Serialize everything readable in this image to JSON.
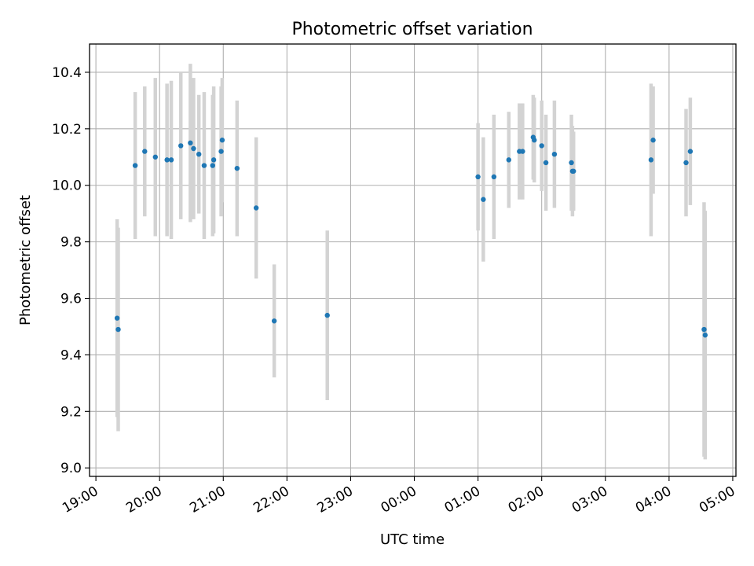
{
  "chart_data": {
    "type": "scatter",
    "title": "Photometric offset variation",
    "xlabel": "UTC time",
    "ylabel": "Photometric offset",
    "x_is_time": true,
    "x_start": "19:00",
    "x_range_hours": [
      -0.1,
      10.05
    ],
    "ylim": [
      8.97,
      10.5
    ],
    "grid": true,
    "x_tick_labels": [
      "19:00",
      "20:00",
      "21:00",
      "22:00",
      "23:00",
      "00:00",
      "01:00",
      "02:00",
      "03:00",
      "04:00",
      "05:00"
    ],
    "y_ticks": [
      9.0,
      9.2,
      9.4,
      9.6,
      9.8,
      10.0,
      10.2,
      10.4
    ],
    "y_tick_labels": [
      "9.0",
      "9.2",
      "9.4",
      "9.6",
      "9.8",
      "10.0",
      "10.2",
      "10.4"
    ],
    "colors": {
      "points": "#1f77b4",
      "error_bars": "#d3d3d3",
      "grid": "#b0b0b0"
    },
    "points": [
      {
        "t": "19:20",
        "y": 9.53,
        "err": 0.35
      },
      {
        "t": "19:21",
        "y": 9.49,
        "err": 0.36
      },
      {
        "t": "19:37",
        "y": 10.07,
        "err": 0.26
      },
      {
        "t": "19:46",
        "y": 10.12,
        "err": 0.23
      },
      {
        "t": "19:56",
        "y": 10.1,
        "err": 0.28
      },
      {
        "t": "20:07",
        "y": 10.09,
        "err": 0.27
      },
      {
        "t": "20:11",
        "y": 10.09,
        "err": 0.28
      },
      {
        "t": "20:20",
        "y": 10.14,
        "err": 0.26
      },
      {
        "t": "20:29",
        "y": 10.15,
        "err": 0.28
      },
      {
        "t": "20:32",
        "y": 10.13,
        "err": 0.25
      },
      {
        "t": "20:37",
        "y": 10.11,
        "err": 0.21
      },
      {
        "t": "20:42",
        "y": 10.07,
        "err": 0.26
      },
      {
        "t": "20:50",
        "y": 10.07,
        "err": 0.25
      },
      {
        "t": "20:51",
        "y": 10.09,
        "err": 0.26
      },
      {
        "t": "20:58",
        "y": 10.12,
        "err": 0.23
      },
      {
        "t": "20:59",
        "y": 10.16,
        "err": 0.22
      },
      {
        "t": "21:13",
        "y": 10.06,
        "err": 0.24
      },
      {
        "t": "21:31",
        "y": 9.92,
        "err": 0.25
      },
      {
        "t": "21:48",
        "y": 9.52,
        "err": 0.2
      },
      {
        "t": "22:38",
        "y": 9.54,
        "err": 0.3
      },
      {
        "t": "01:00",
        "y": 10.03,
        "err": 0.19
      },
      {
        "t": "01:05",
        "y": 9.95,
        "err": 0.22
      },
      {
        "t": "01:15",
        "y": 10.03,
        "err": 0.22
      },
      {
        "t": "01:29",
        "y": 10.09,
        "err": 0.17
      },
      {
        "t": "01:39",
        "y": 10.12,
        "err": 0.17
      },
      {
        "t": "01:42",
        "y": 10.12,
        "err": 0.17
      },
      {
        "t": "01:52",
        "y": 10.17,
        "err": 0.15
      },
      {
        "t": "01:53",
        "y": 10.16,
        "err": 0.15
      },
      {
        "t": "02:00",
        "y": 10.14,
        "err": 0.16
      },
      {
        "t": "02:04",
        "y": 10.08,
        "err": 0.17
      },
      {
        "t": "02:12",
        "y": 10.11,
        "err": 0.19
      },
      {
        "t": "02:28",
        "y": 10.08,
        "err": 0.17
      },
      {
        "t": "02:29",
        "y": 10.05,
        "err": 0.16
      },
      {
        "t": "02:30",
        "y": 10.05,
        "err": 0.14
      },
      {
        "t": "03:43",
        "y": 10.09,
        "err": 0.27
      },
      {
        "t": "03:45",
        "y": 10.16,
        "err": 0.19
      },
      {
        "t": "04:16",
        "y": 10.08,
        "err": 0.19
      },
      {
        "t": "04:20",
        "y": 10.12,
        "err": 0.19
      },
      {
        "t": "04:33",
        "y": 9.49,
        "err": 0.45
      },
      {
        "t": "04:34",
        "y": 9.47,
        "err": 0.44
      }
    ]
  }
}
